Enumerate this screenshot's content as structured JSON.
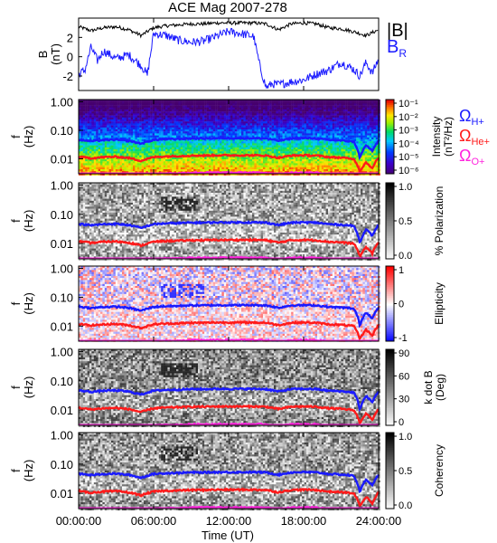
{
  "chart_data": [
    {
      "type": "line",
      "title": "ACE Mag 2007-278",
      "ylabel": "B",
      "yunit": "(nT)",
      "ylim": [
        -3.5,
        4
      ],
      "yticks": [
        "2",
        "0",
        "-2"
      ],
      "series": [
        {
          "name": "|B|",
          "color": "#000000",
          "x": [
            0,
            1,
            2,
            3,
            4,
            5,
            6,
            7,
            8,
            9,
            10,
            11,
            12,
            13,
            14,
            15,
            16,
            17,
            18,
            19,
            20,
            21,
            22,
            23,
            24
          ],
          "values": [
            3.1,
            2.7,
            3.0,
            3.1,
            2.8,
            2.2,
            3.0,
            3.2,
            3.3,
            3.4,
            3.4,
            3.5,
            3.5,
            3.5,
            3.5,
            3.4,
            2.8,
            3.4,
            3.5,
            3.4,
            3.0,
            2.9,
            2.6,
            2.2,
            2.8
          ]
        },
        {
          "name": "B",
          "subscript": "R",
          "color": "#1a1aff",
          "x": [
            0,
            0.5,
            1,
            1.5,
            2,
            3,
            4,
            5,
            5.5,
            6,
            7,
            8,
            9,
            10,
            11,
            12,
            13,
            14,
            14.5,
            15,
            15.5,
            16,
            17,
            18,
            19,
            20,
            21,
            22,
            22.5,
            23,
            23.5,
            24
          ],
          "values": [
            -1.8,
            -1.4,
            1.0,
            -0.4,
            0.6,
            -0.2,
            0.2,
            -0.9,
            -1.9,
            2.4,
            2.2,
            1.7,
            1.5,
            1.6,
            2.1,
            2.6,
            2.4,
            2.1,
            -1.0,
            -3.2,
            -2.8,
            -2.9,
            -2.6,
            -2.4,
            -1.8,
            -1.4,
            -0.6,
            -1.3,
            -2.0,
            -0.6,
            -1.7,
            -0.2
          ]
        }
      ]
    },
    {
      "type": "heatmap",
      "ylabel": "f",
      "yunit": "(Hz)",
      "yscale": "log",
      "ylim": [
        0.003,
        1.2
      ],
      "yticks": [
        "1.00",
        "0.10",
        "0.01"
      ],
      "colorbar": {
        "label": "Intensity",
        "unit": "(nT²/Hz)",
        "scale": "log",
        "ticks": [
          "10⁻¹",
          "10⁻²",
          "10⁻³",
          "10⁻⁴",
          "10⁻⁵",
          "10⁻⁶"
        ]
      },
      "legend": [
        {
          "symbol": "Ω",
          "sub": "H+",
          "color": "#1a1aff"
        },
        {
          "symbol": "Ω",
          "sub": "He+",
          "color": "#ff1a1a"
        },
        {
          "symbol": "Ω",
          "sub": "O+",
          "color": "#ff22dd"
        }
      ]
    },
    {
      "type": "heatmap",
      "ylabel": "f",
      "yunit": "(Hz)",
      "yscale": "log",
      "yticks": [
        "1.00",
        "0.10",
        "0.01"
      ],
      "colorbar": {
        "label": "% Polarization",
        "ticks": [
          "1.0",
          "0.5",
          "0.0"
        ]
      }
    },
    {
      "type": "heatmap",
      "ylabel": "f",
      "yunit": "(Hz)",
      "yscale": "log",
      "yticks": [
        "1.00",
        "0.10",
        "0.01"
      ],
      "colorbar": {
        "label": "Ellipticity",
        "ticks": [
          "1",
          "0",
          "-1"
        ]
      }
    },
    {
      "type": "heatmap",
      "ylabel": "f",
      "yunit": "(Hz)",
      "yscale": "log",
      "yticks": [
        "1.00",
        "0.10",
        "0.01"
      ],
      "colorbar": {
        "label": "k dot B",
        "unit": "(Deg)",
        "ticks": [
          "90",
          "60",
          "30",
          "0"
        ]
      }
    },
    {
      "type": "heatmap",
      "ylabel": "f",
      "yunit": "(Hz)",
      "yscale": "log",
      "yticks": [
        "1.00",
        "0.10",
        "0.01"
      ],
      "colorbar": {
        "label": "Coherency",
        "ticks": [
          "1.0",
          "0.5",
          "0.0"
        ]
      }
    }
  ],
  "gyrofrequency_lines": {
    "x_hours": [
      0,
      1,
      2,
      3,
      4,
      5,
      6,
      7,
      8,
      9,
      10,
      11,
      12,
      13,
      14,
      15,
      16,
      17,
      18,
      19,
      20,
      21,
      22,
      22.5,
      23,
      23.5,
      24
    ],
    "H+": [
      0.047,
      0.042,
      0.046,
      0.047,
      0.043,
      0.034,
      0.046,
      0.049,
      0.05,
      0.052,
      0.052,
      0.053,
      0.053,
      0.053,
      0.053,
      0.052,
      0.043,
      0.052,
      0.053,
      0.052,
      0.046,
      0.044,
      0.04,
      0.01,
      0.03,
      0.018,
      0.043
    ],
    "He+": [
      0.0118,
      0.0105,
      0.0115,
      0.0118,
      0.0108,
      0.0085,
      0.0115,
      0.0122,
      0.0125,
      0.013,
      0.013,
      0.0133,
      0.0133,
      0.0133,
      0.0133,
      0.013,
      0.0108,
      0.013,
      0.0133,
      0.013,
      0.0115,
      0.011,
      0.01,
      0.0035,
      0.0075,
      0.0045,
      0.0108
    ],
    "O+": [
      0.003,
      0.0026,
      0.0029,
      0.003,
      0.0027,
      0.0021,
      0.0029,
      0.0031,
      0.0031,
      0.0033,
      0.0033,
      0.0033,
      0.0033,
      0.0033,
      0.0033,
      0.0033,
      0.0027,
      0.0033,
      0.0033,
      0.0033,
      0.0029,
      0.0028,
      0.0025,
      0.0025,
      0.0025,
      0.0025,
      0.0027
    ]
  },
  "x_axis": {
    "label": "Time (UT)",
    "range_hours": [
      0,
      24
    ],
    "ticks": [
      "00:00:00",
      "06:00:00",
      "12:00:00",
      "18:00:00",
      "24:00:00"
    ]
  },
  "colors": {
    "h_plus": "#1a1aff",
    "he_plus": "#ff1a1a",
    "o_plus": "#ff22dd",
    "br": "#1a1aff",
    "bmag": "#000000"
  }
}
